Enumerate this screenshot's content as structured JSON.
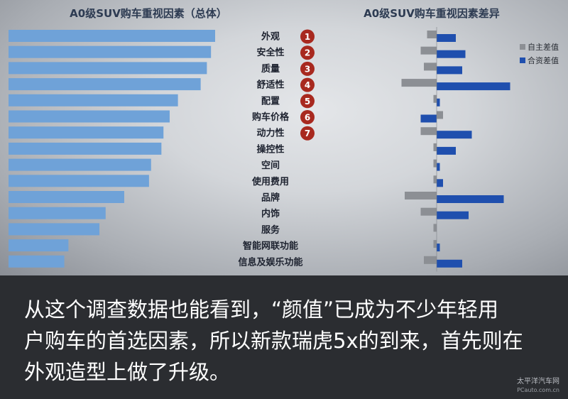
{
  "chart_data": [
    {
      "type": "bar",
      "orientation": "horizontal",
      "title": "A0级SUV购车重视因素（总体）",
      "categories": [
        "外观",
        "安全性",
        "质量",
        "舒适性",
        "配置",
        "购车价格",
        "动力性",
        "操控性",
        "空间",
        "使用费用",
        "品牌",
        "内饰",
        "服务",
        "智能网联功能",
        "信息及娱乐功能"
      ],
      "ranks": [
        "1",
        "2",
        "3",
        "4",
        "5",
        "6",
        "7"
      ],
      "values": [
        100,
        98,
        96,
        93,
        82,
        78,
        75,
        74,
        69,
        68,
        56,
        47,
        44,
        29,
        27
      ],
      "xlim": [
        0,
        100
      ],
      "color": "#6fa2d8"
    },
    {
      "type": "bar",
      "orientation": "horizontal",
      "title": "A0级SUV购车重视因素差异",
      "categories": [
        "外观",
        "安全性",
        "质量",
        "舒适性",
        "配置",
        "购车价格",
        "动力性",
        "操控性",
        "空间",
        "使用费用",
        "品牌",
        "内饰",
        "服务",
        "智能网联功能",
        "信息及娱乐功能"
      ],
      "series": [
        {
          "name": "自主差值",
          "color": "#8c8f94",
          "values": [
            -3,
            -5,
            -4,
            -11,
            -1,
            2,
            -5,
            -1,
            -1,
            -1,
            -10,
            -5,
            -1,
            -1,
            -4
          ]
        },
        {
          "name": "合资差值",
          "color": "#1f4fae",
          "values": [
            6,
            9,
            8,
            23,
            1,
            -5,
            11,
            6,
            1,
            2,
            21,
            10,
            0,
            1,
            8
          ]
        }
      ],
      "xlim": [
        -12,
        25
      ],
      "legend_position": "right"
    }
  ],
  "caption": {
    "line1": "从这个调查数据也能看到，“颜值”已成为不少年轻用",
    "line2": "户购车的首选因素，所以新款瑞虎5x的到来，首先则在",
    "line3": "外观造型上做了升级。"
  },
  "watermark": {
    "line1": "太平洋汽车网",
    "line2": "PCauto.com.cn"
  }
}
